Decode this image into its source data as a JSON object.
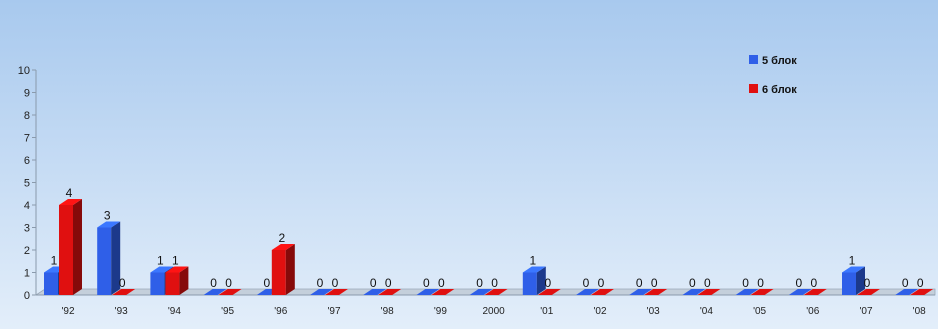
{
  "chart_data": {
    "type": "bar",
    "style": "3d-clustered-columns",
    "categories": [
      "'92",
      "'93",
      "'94",
      "'95",
      "'96",
      "'97",
      "'98",
      "'99",
      "2000",
      "'01",
      "'02",
      "'03",
      "'04",
      "'05",
      "'06",
      "'07",
      "'08"
    ],
    "series": [
      {
        "name": "5 блок",
        "color": "#2f5fe8",
        "values": [
          1,
          3,
          1,
          0,
          0,
          0,
          0,
          0,
          0,
          1,
          0,
          0,
          0,
          0,
          0,
          1,
          0
        ]
      },
      {
        "name": "6 блок",
        "color": "#e01010",
        "values": [
          4,
          0,
          1,
          0,
          2,
          0,
          0,
          0,
          0,
          0,
          0,
          0,
          0,
          0,
          0,
          0,
          0
        ]
      }
    ],
    "ylim": [
      0,
      10
    ],
    "yticks": [
      0,
      1,
      2,
      3,
      4,
      5,
      6,
      7,
      8,
      9,
      10
    ],
    "legend_position": "top-right",
    "data_labels": true,
    "grid": false,
    "background": [
      "#a8c9ee",
      "#e3eefa"
    ]
  }
}
